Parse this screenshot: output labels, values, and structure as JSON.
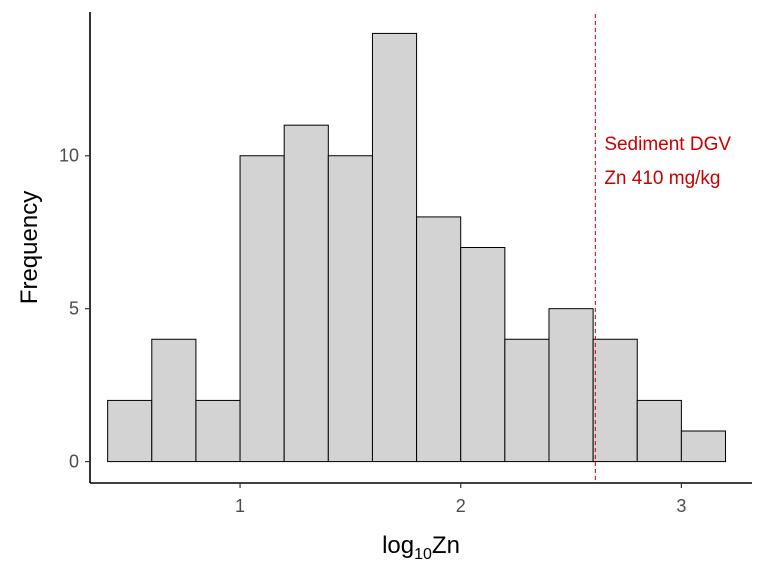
{
  "chart_data": {
    "type": "bar",
    "subtype": "histogram",
    "title": "",
    "xlabel": "log10Zn",
    "xlabel_parts": {
      "base": "log",
      "sub": "10",
      "rest": "Zn"
    },
    "ylabel": "Frequency",
    "xlim": [
      0.32,
      3.32
    ],
    "ylim": [
      -0.7,
      14.7
    ],
    "x_ticks": [
      1,
      2,
      3
    ],
    "x_tick_labels": [
      "1",
      "2",
      "3"
    ],
    "y_ticks": [
      0,
      5,
      10
    ],
    "y_tick_labels": [
      "0",
      "5",
      "10"
    ],
    "bin_width": 0.2,
    "bin_edges": [
      0.4,
      0.6,
      0.8,
      1.0,
      1.2,
      1.4,
      1.6,
      1.8,
      2.0,
      2.2,
      2.4,
      2.6,
      2.8,
      3.0,
      3.2
    ],
    "values": [
      2,
      4,
      2,
      10,
      11,
      10,
      14,
      8,
      7,
      4,
      5,
      4,
      2,
      1
    ],
    "grid": false,
    "bar_fill": "#d3d3d3",
    "bar_stroke": "#000000",
    "reference_line": {
      "x": 2.61,
      "style": "dashed",
      "color": "#cc0000",
      "label_lines": [
        "Sediment DGV",
        "Zn 410 mg/kg"
      ]
    }
  }
}
